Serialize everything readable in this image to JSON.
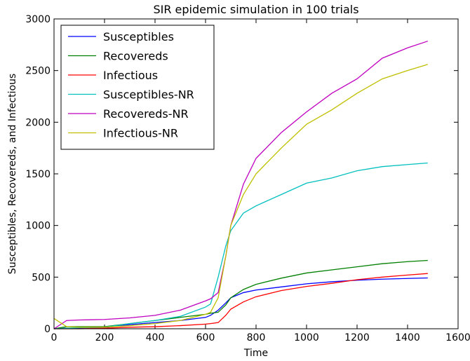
{
  "chart_data": {
    "type": "line",
    "title": "SIR epidemic simulation in 100 trials",
    "xlabel": "Time",
    "ylabel": "Susceptibles, Recovereds, and Infectious",
    "x": [
      0,
      50,
      100,
      200,
      300,
      400,
      500,
      600,
      620,
      650,
      680,
      700,
      750,
      800,
      900,
      1000,
      1100,
      1200,
      1300,
      1400,
      1480
    ],
    "series": [
      {
        "name": "Susceptibles",
        "color": "#0000ff",
        "values": [
          0,
          5,
          5,
          10,
          40,
          60,
          80,
          110,
          130,
          180,
          250,
          300,
          350,
          375,
          405,
          435,
          455,
          470,
          480,
          487,
          492
        ]
      },
      {
        "name": "Recovereds",
        "color": "#008000",
        "values": [
          0,
          20,
          20,
          20,
          50,
          80,
          110,
          140,
          150,
          160,
          230,
          300,
          380,
          430,
          490,
          540,
          570,
          600,
          630,
          650,
          662
        ]
      },
      {
        "name": "Infectious",
        "color": "#ff0000",
        "values": [
          0,
          0,
          0,
          5,
          15,
          20,
          30,
          45,
          50,
          60,
          130,
          190,
          260,
          310,
          370,
          410,
          440,
          475,
          500,
          520,
          535
        ]
      },
      {
        "name": "Susceptibles-NR",
        "color": "#00bfbf",
        "values": [
          0,
          5,
          10,
          15,
          50,
          80,
          120,
          210,
          240,
          500,
          800,
          950,
          1120,
          1190,
          1300,
          1410,
          1460,
          1530,
          1570,
          1590,
          1605
        ]
      },
      {
        "name": "Recovereds-NR",
        "color": "#bf00bf",
        "values": [
          0,
          80,
          85,
          90,
          105,
          130,
          180,
          270,
          290,
          350,
          700,
          1000,
          1400,
          1650,
          1900,
          2100,
          2280,
          2420,
          2620,
          2720,
          2785
        ]
      },
      {
        "name": "Infectious-NR",
        "color": "#bfbf00",
        "values": [
          100,
          20,
          15,
          15,
          30,
          50,
          80,
          140,
          160,
          300,
          700,
          1000,
          1300,
          1500,
          1750,
          1980,
          2120,
          2280,
          2420,
          2500,
          2560
        ]
      }
    ],
    "xlim": [
      0,
      1600
    ],
    "xticks": [
      0,
      200,
      400,
      600,
      800,
      1000,
      1200,
      1400,
      1600
    ],
    "ylim": [
      0,
      3000
    ],
    "yticks": [
      0,
      500,
      1000,
      1500,
      2000,
      2500,
      3000
    ],
    "grid": false,
    "legend": "upper left"
  }
}
